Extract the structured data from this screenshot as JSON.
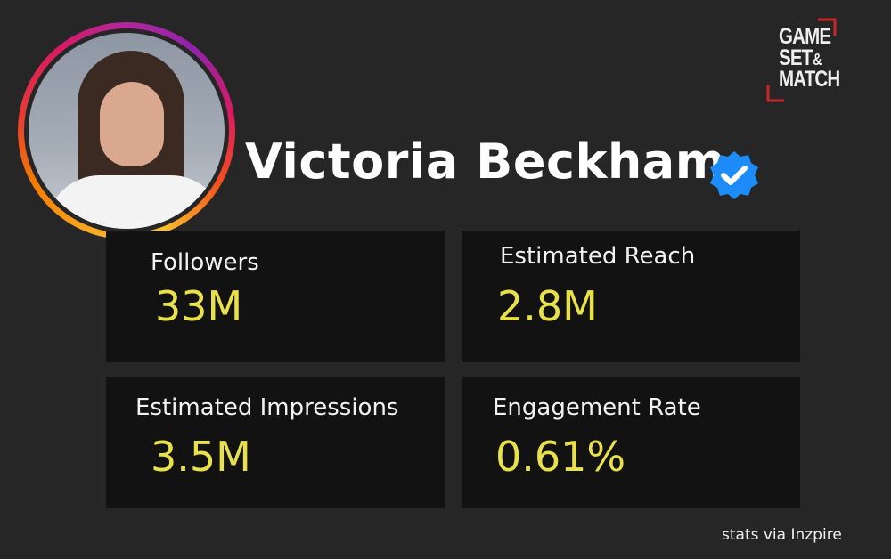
{
  "profile": {
    "name": "Victoria Beckham",
    "verified_icon": "verified-badge-icon"
  },
  "logo": {
    "lines": [
      "GAME",
      "SET",
      "&",
      "MATCH"
    ]
  },
  "stats": [
    {
      "label": "Followers",
      "value": "33M"
    },
    {
      "label": "Estimated Reach",
      "value": "2.8M"
    },
    {
      "label": "Estimated Impressions",
      "value": "3.5M"
    },
    {
      "label": "Engagement Rate",
      "value": "0.61%"
    }
  ],
  "footer": {
    "credit": "stats via Inzpire"
  },
  "colors": {
    "background": "#262626",
    "card": "#121212",
    "value": "#e8e14a",
    "badge": "#1d8cf8",
    "logo_accent": "#c62828"
  }
}
